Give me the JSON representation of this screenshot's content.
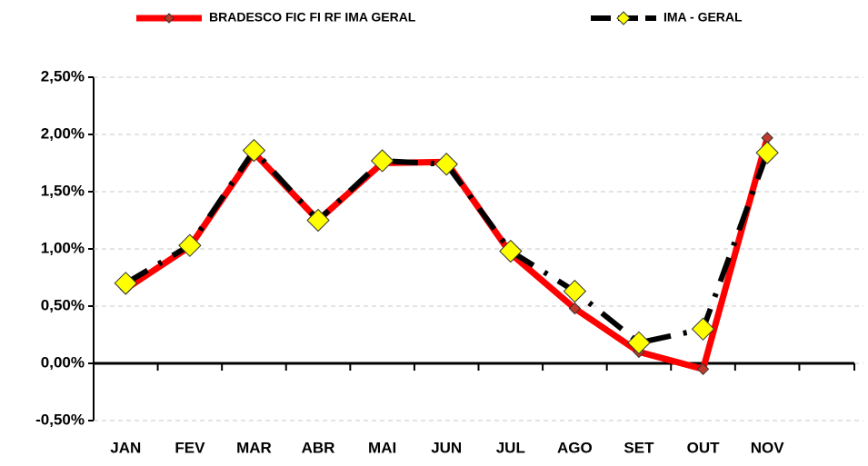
{
  "chart_data": {
    "type": "line",
    "categories": [
      "JAN",
      "FEV",
      "MAR",
      "ABR",
      "MAI",
      "JUN",
      "JUL",
      "AGO",
      "SET",
      "OUT",
      "NOV",
      null
    ],
    "series": [
      {
        "name": "BRADESCO FIC FI RF IMA GERAL",
        "color": "#ff0000",
        "marker_color": "#c0392b",
        "dashed": false,
        "values": [
          0.65,
          1.02,
          1.84,
          1.25,
          1.75,
          1.76,
          0.96,
          0.48,
          0.1,
          -0.05,
          1.97,
          null
        ]
      },
      {
        "name": "IMA - GERAL",
        "color": "#000000",
        "marker_color": "#ffff00",
        "dashed": true,
        "values": [
          0.7,
          1.03,
          1.86,
          1.25,
          1.77,
          1.74,
          0.98,
          0.63,
          0.18,
          0.3,
          1.84,
          null
        ]
      }
    ],
    "ylim": [
      -0.5,
      2.5
    ],
    "yticks": [
      {
        "value": -0.5,
        "label": "-0,50%"
      },
      {
        "value": 0,
        "label": "0,00%"
      },
      {
        "value": 0.5,
        "label": "0,50%"
      },
      {
        "value": 1.0,
        "label": "1,00%"
      },
      {
        "value": 1.5,
        "label": "1,50%"
      },
      {
        "value": 2.0,
        "label": "2,00%"
      },
      {
        "value": 2.5,
        "label": "2,50%"
      }
    ],
    "grid": true
  }
}
